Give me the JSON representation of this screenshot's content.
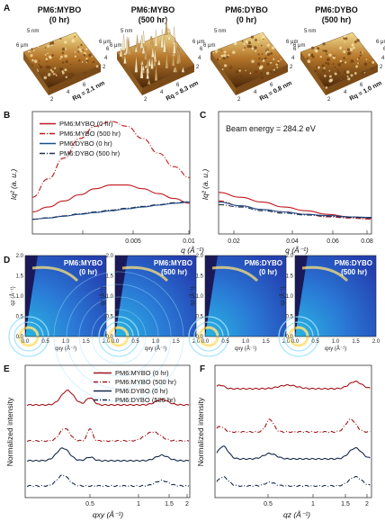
{
  "panel_labels": {
    "a": "A",
    "b": "B",
    "c": "C",
    "d": "D",
    "e": "E",
    "f": "F"
  },
  "afm": [
    {
      "title_line1": "PM6:MYBO",
      "title_line2": "(0 hr)",
      "rq": "Rq = 2.1 nm",
      "rough": 0.35,
      "z": "5 nm",
      "scale_a": "6 μm",
      "scale_b": "6 μm"
    },
    {
      "title_line1": "PM6:MYBO",
      "title_line2": "(500 hr)",
      "rq": "Rq = 8.3 nm",
      "rough": 1.0,
      "z": "5 nm",
      "scale_a": "6 μm",
      "scale_b": "6 μm"
    },
    {
      "title_line1": "PM6:DYBO",
      "title_line2": "(0 hr)",
      "rq": "Rq = 0.8 nm",
      "rough": 0.18,
      "z": "5 nm",
      "scale_a": "6 μm",
      "scale_b": "6 μm"
    },
    {
      "title_line1": "PM6:DYBO",
      "title_line2": "(500 hr)",
      "rq": "Rq = 1.0 nm",
      "rough": 0.22,
      "z": "5 nm",
      "scale_a": "6 μm",
      "scale_b": "6 μm"
    }
  ],
  "afm_ticks": [
    "2",
    "4",
    "6",
    "2",
    "4",
    "6"
  ],
  "legend_b": [
    {
      "label": "PM6:MYBO (0 hr)",
      "color": "#c0181e",
      "dash": "none"
    },
    {
      "label": "PM6:MYBO (500 hr)",
      "color": "#c0181e",
      "dash": "6,2,1,2"
    },
    {
      "label": "PM6:DYBO (0 hr)",
      "color": "#1c4e8a",
      "dash": "none"
    },
    {
      "label": "PM6:DYBO (500 hr)",
      "color": "#1c2f52",
      "dash": "6,2,1,2"
    }
  ],
  "chart_data": [
    {
      "panel": "B",
      "type": "line",
      "xlabel": "q (Å⁻¹)",
      "ylabel": "Iq² (a. u.)",
      "xlim": [
        0,
        0.01
      ],
      "xticks": [
        "0.005",
        "0.01"
      ],
      "series": [
        {
          "name": "PM6:MYBO (0 hr)",
          "x": [
            0,
            0.001,
            0.002,
            0.003,
            0.004,
            0.005,
            0.006,
            0.007,
            0.008,
            0.009,
            0.01
          ],
          "values": [
            0.18,
            0.22,
            0.27,
            0.32,
            0.37,
            0.4,
            0.4,
            0.37,
            0.33,
            0.29,
            0.25
          ]
        },
        {
          "name": "PM6:MYBO (500 hr)",
          "x": [
            0,
            0.001,
            0.002,
            0.003,
            0.004,
            0.005,
            0.006,
            0.007,
            0.008,
            0.009,
            0.01
          ],
          "values": [
            0.3,
            0.45,
            0.62,
            0.78,
            0.88,
            0.92,
            0.88,
            0.78,
            0.66,
            0.55,
            0.46
          ]
        },
        {
          "name": "PM6:DYBO (0 hr)",
          "x": [
            0,
            0.001,
            0.002,
            0.003,
            0.004,
            0.005,
            0.006,
            0.007,
            0.008,
            0.009,
            0.01
          ],
          "values": [
            0.12,
            0.13,
            0.145,
            0.16,
            0.175,
            0.19,
            0.205,
            0.22,
            0.235,
            0.25,
            0.26
          ]
        },
        {
          "name": "PM6:DYBO (500 hr)",
          "x": [
            0,
            0.001,
            0.002,
            0.003,
            0.004,
            0.005,
            0.006,
            0.007,
            0.008,
            0.009,
            0.01
          ],
          "values": [
            0.12,
            0.132,
            0.148,
            0.165,
            0.18,
            0.195,
            0.21,
            0.225,
            0.24,
            0.255,
            0.265
          ]
        }
      ]
    },
    {
      "panel": "C",
      "type": "line",
      "annotation": "Beam energy = 284.2 eV",
      "xlabel": "q (Å⁻¹)",
      "ylabel": "Iq² (a. u.)",
      "xlim": [
        0.01,
        0.08
      ],
      "xticks": [
        "0.02",
        "0.04",
        "0.06",
        "0.08"
      ],
      "series": [
        {
          "name": "PM6:MYBO (0 hr)",
          "x": [
            0.01,
            0.02,
            0.03,
            0.04,
            0.05,
            0.06,
            0.07,
            0.08
          ],
          "values": [
            0.34,
            0.3,
            0.26,
            0.22,
            0.19,
            0.16,
            0.14,
            0.13
          ]
        },
        {
          "name": "PM6:MYBO (500 hr)",
          "x": [
            0.01,
            0.02,
            0.03,
            0.04,
            0.05,
            0.06,
            0.07,
            0.08
          ],
          "values": [
            0.27,
            0.23,
            0.2,
            0.18,
            0.16,
            0.14,
            0.13,
            0.12
          ]
        },
        {
          "name": "PM6:DYBO (0 hr)",
          "x": [
            0.01,
            0.02,
            0.03,
            0.04,
            0.05,
            0.06,
            0.07,
            0.08
          ],
          "values": [
            0.26,
            0.23,
            0.2,
            0.18,
            0.16,
            0.15,
            0.14,
            0.135
          ]
        },
        {
          "name": "PM6:DYBO (500 hr)",
          "x": [
            0.01,
            0.02,
            0.03,
            0.04,
            0.05,
            0.06,
            0.07,
            0.08
          ],
          "values": [
            0.24,
            0.22,
            0.19,
            0.17,
            0.155,
            0.145,
            0.135,
            0.13
          ]
        }
      ]
    },
    {
      "panel": "D",
      "type": "heatmap",
      "xlabel": "qxy (Å⁻¹)",
      "ylabel": "qz (Å⁻¹)",
      "xticks": [
        "0.0",
        "0.5",
        "1.0",
        "1.5",
        "2.0"
      ],
      "yticks": [
        "0.0",
        "0.5",
        "1.0",
        "1.5",
        "2.0"
      ],
      "titles": [
        [
          "PM6:MYBO",
          "(0 hr)"
        ],
        [
          "PM6:MYBO",
          "(500 hr)"
        ],
        [
          "PM6:DYBO",
          "(0 hr)"
        ],
        [
          "PM6:DYBO",
          "(500 hr)"
        ]
      ]
    },
    {
      "panel": "E",
      "type": "line",
      "log_x": true,
      "xlabel": "qxy (Å⁻¹)",
      "ylabel": "Normalized intensity",
      "xticks": [
        "0.5",
        "1",
        "1.5",
        "2"
      ],
      "series": [
        {
          "name": "PM6:MYBO (0 hr)"
        },
        {
          "name": "PM6:MYBO (500 hr)"
        },
        {
          "name": "PM6:DYBO (0 hr)"
        },
        {
          "name": "PM6:DYBO (500 hr)"
        }
      ]
    },
    {
      "panel": "F",
      "type": "line",
      "log_x": true,
      "xlabel": "qz (Å⁻¹)",
      "ylabel": "Normalized intensity",
      "xticks": [
        "0.5",
        "1",
        "1.5",
        "2"
      ],
      "series": [
        {
          "name": "PM6:MYBO (0 hr)"
        },
        {
          "name": "PM6:MYBO (500 hr)"
        },
        {
          "name": "PM6:DYBO (0 hr)"
        },
        {
          "name": "PM6:DYBO (500 hr)"
        }
      ]
    }
  ],
  "legend_e": [
    {
      "label": "PM6:MYBO (0 hr)",
      "color": "#a31418",
      "dash": "none"
    },
    {
      "label": "PM6:MYBO (500 hr)",
      "color": "#a31418",
      "dash": "5,2,1,2"
    },
    {
      "label": "PM6:DYBO (0 hr)",
      "color": "#14284a",
      "dash": "none"
    },
    {
      "label": "PM6:DYBO (500 hr)",
      "color": "#14284a",
      "dash": "5,2,1,2"
    }
  ]
}
